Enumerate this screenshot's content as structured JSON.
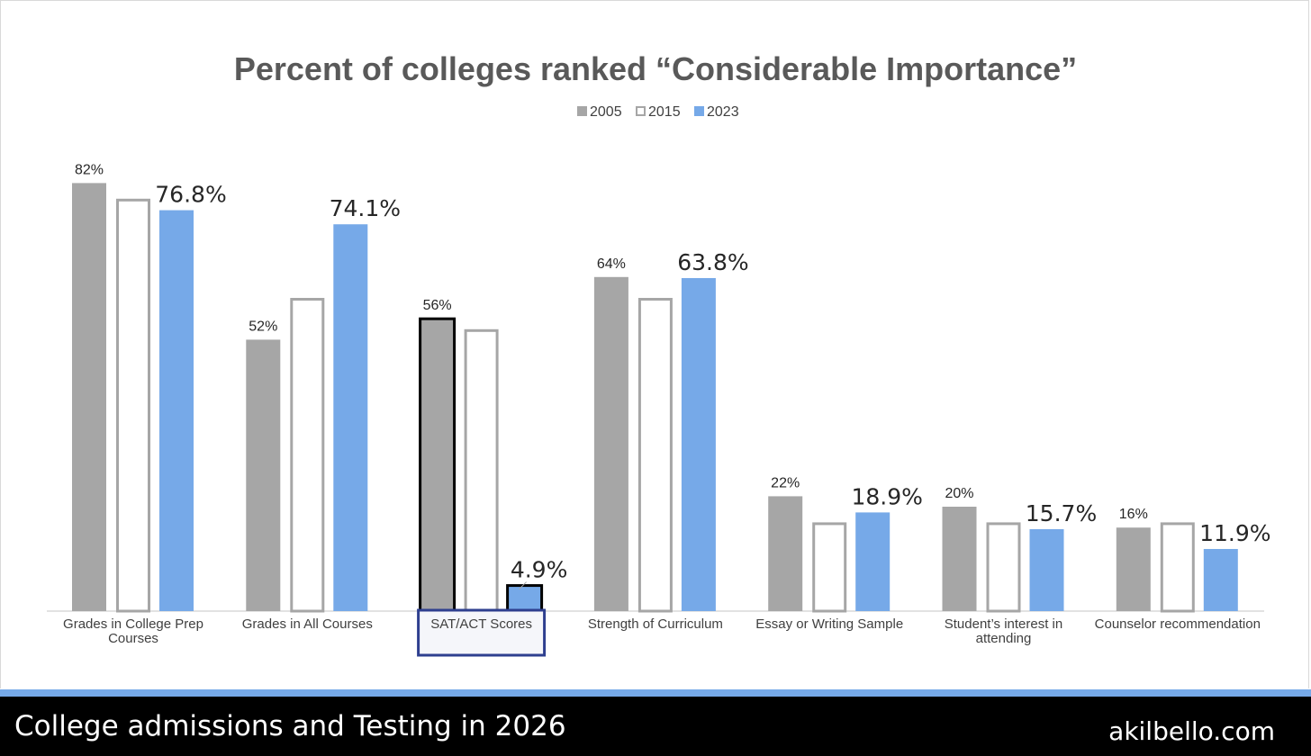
{
  "colors": {
    "series_2005": "#a6a6a6",
    "series_2015_outline": "#a6a6a6",
    "series_2023": "#76a9e8",
    "highlight_outline": "#000000",
    "highlight_box": "#2e3f8f",
    "accent_strip": "#76a9e8",
    "footer_bg": "#000000",
    "title": "#595959"
  },
  "footer": {
    "title": "College admissions and Testing in 2026",
    "site": "akilbello.com"
  },
  "chart_data": {
    "type": "bar",
    "title": "Percent of colleges ranked “Considerable Importance”",
    "xlabel": "",
    "ylabel": "",
    "ylim": [
      0,
      100
    ],
    "grid": false,
    "legend_position": "top-center",
    "categories": [
      "Grades in College Prep Courses",
      "Grades in All Courses",
      "SAT/ACT Scores",
      "Strength of Curriculum",
      "Essay or Writing Sample",
      "Student’s interest in attending",
      "Counselor recommendation"
    ],
    "highlighted_category": "SAT/ACT Scores",
    "series": [
      {
        "name": "2005",
        "style": "filled-gray",
        "values": [
          82,
          52,
          56,
          64,
          22,
          20,
          16
        ],
        "labels": [
          "82%",
          "52%",
          "56%",
          "64%",
          "22%",
          "20%",
          "16%"
        ]
      },
      {
        "name": "2015",
        "style": "outline-gray",
        "values": [
          79,
          60,
          54,
          60,
          17,
          17,
          17
        ],
        "labels": [
          "",
          "",
          "",
          "",
          "",
          "",
          ""
        ]
      },
      {
        "name": "2023",
        "style": "filled-blue",
        "values": [
          76.8,
          74.1,
          4.9,
          63.8,
          18.9,
          15.7,
          11.9
        ],
        "labels": [
          "76.8%",
          "74.1%",
          "4.9%",
          "63.8%",
          "18.9%",
          "15.7%",
          "11.9%"
        ]
      }
    ]
  }
}
